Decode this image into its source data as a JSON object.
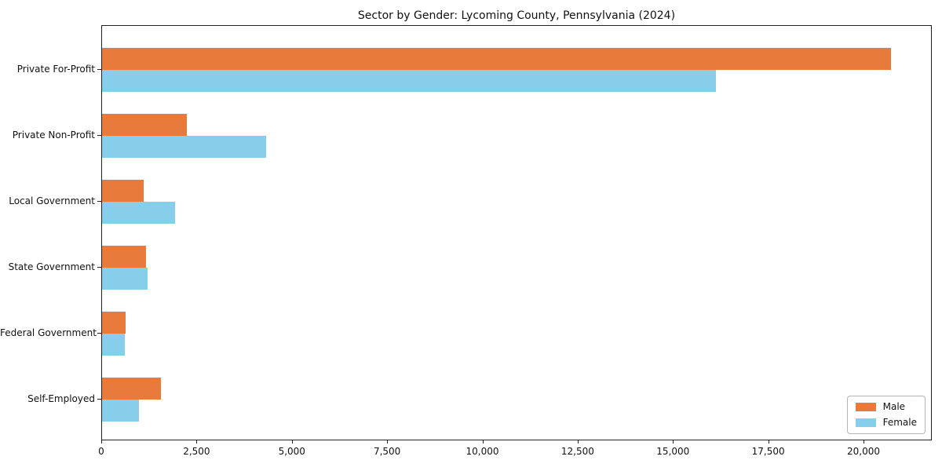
{
  "chart_data": {
    "type": "bar",
    "orientation": "horizontal",
    "title": "Sector by Gender: Lycoming County, Pennsylvania (2024)",
    "categories": [
      "Private For-Profit",
      "Private Non-Profit",
      "Local Government",
      "State Government",
      "Federal Government",
      "Self-Employed"
    ],
    "series": [
      {
        "name": "Male",
        "color": "#E87A3C",
        "values": [
          20700,
          2230,
          1090,
          1150,
          610,
          1540
        ]
      },
      {
        "name": "Female",
        "color": "#87CEEB",
        "values": [
          16100,
          4300,
          1910,
          1190,
          600,
          960
        ]
      }
    ],
    "xlabel": "",
    "ylabel": "",
    "xlim": [
      0,
      21750
    ],
    "x_ticks": [
      0,
      2500,
      5000,
      7500,
      10000,
      12500,
      15000,
      17500,
      20000
    ],
    "x_tick_labels": [
      "0",
      "2,500",
      "5,000",
      "7,500",
      "10,000",
      "12,500",
      "15,000",
      "17,500",
      "20,000"
    ],
    "grid": false,
    "legend_position": "lower-right"
  }
}
